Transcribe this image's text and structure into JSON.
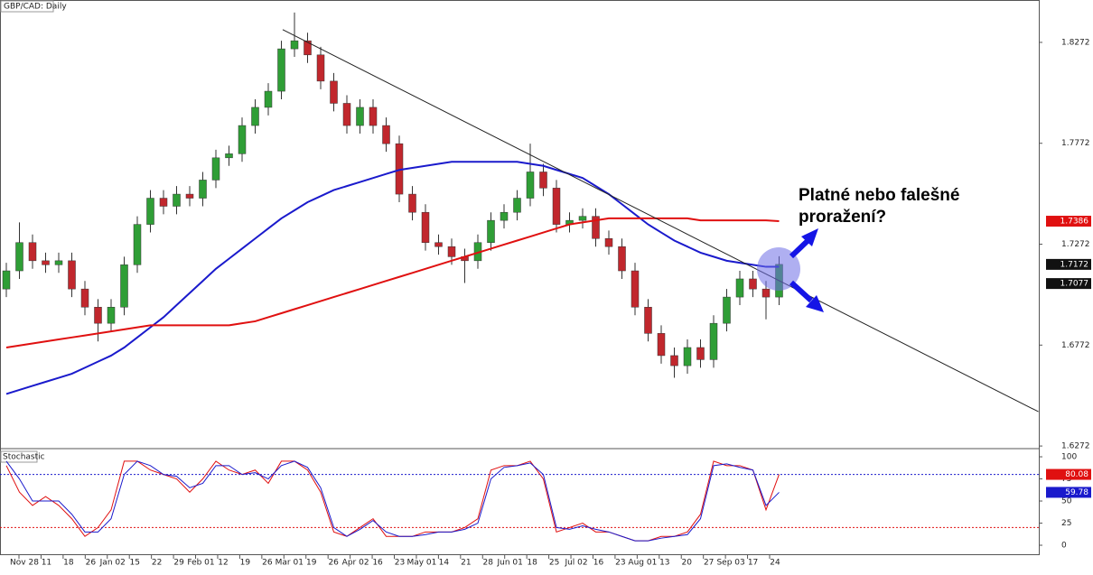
{
  "chart_data": [
    {
      "type": "candlestick",
      "title": "GBP/CAD: Daily",
      "x_labels": [
        "Nov 28",
        "11",
        "18",
        "26",
        "Jan 02",
        "15",
        "22",
        "29",
        "Feb 01",
        "12",
        "19",
        "26",
        "Mar 01",
        "19",
        "26",
        "Apr 02",
        "16",
        "23",
        "May 01",
        "14",
        "21",
        "28",
        "Jun 01",
        "18",
        "25",
        "Jul 02",
        "16",
        "23",
        "Aug 01",
        "13",
        "20",
        "27",
        "Sep 03",
        "17",
        "24"
      ],
      "open": [
        1.705,
        1.714,
        1.728,
        1.719,
        1.717,
        1.719,
        1.705,
        1.696,
        1.688,
        1.696,
        1.717,
        1.737,
        1.75,
        1.746,
        1.752,
        1.75,
        1.759,
        1.77,
        1.772,
        1.786,
        1.795,
        1.803,
        1.824,
        1.828,
        1.821,
        1.808,
        1.797,
        1.786,
        1.795,
        1.786,
        1.777,
        1.752,
        1.743,
        1.728,
        1.726,
        1.721,
        1.719,
        1.728,
        1.739,
        1.743,
        1.75,
        1.763,
        1.755,
        1.737,
        1.739,
        1.741,
        1.73,
        1.726,
        1.714,
        1.696,
        1.683,
        1.672,
        1.667,
        1.676,
        1.67,
        1.688,
        1.701,
        1.71,
        1.705,
        1.701
      ],
      "high": [
        1.718,
        1.738,
        1.732,
        1.723,
        1.723,
        1.723,
        1.709,
        1.7,
        1.7,
        1.721,
        1.741,
        1.754,
        1.754,
        1.756,
        1.756,
        1.763,
        1.774,
        1.776,
        1.79,
        1.799,
        1.807,
        1.828,
        1.842,
        1.832,
        1.825,
        1.812,
        1.801,
        1.799,
        1.799,
        1.79,
        1.781,
        1.756,
        1.747,
        1.732,
        1.73,
        1.725,
        1.732,
        1.743,
        1.747,
        1.754,
        1.777,
        1.767,
        1.759,
        1.743,
        1.745,
        1.745,
        1.734,
        1.73,
        1.718,
        1.7,
        1.687,
        1.676,
        1.68,
        1.68,
        1.692,
        1.705,
        1.714,
        1.714,
        1.709,
        1.7212
      ],
      "low": [
        1.701,
        1.71,
        1.715,
        1.713,
        1.713,
        1.701,
        1.692,
        1.679,
        1.684,
        1.692,
        1.713,
        1.733,
        1.742,
        1.742,
        1.746,
        1.746,
        1.755,
        1.766,
        1.768,
        1.782,
        1.791,
        1.799,
        1.82,
        1.817,
        1.804,
        1.793,
        1.782,
        1.782,
        1.782,
        1.773,
        1.748,
        1.739,
        1.724,
        1.722,
        1.717,
        1.708,
        1.715,
        1.724,
        1.735,
        1.739,
        1.746,
        1.751,
        1.733,
        1.733,
        1.735,
        1.726,
        1.722,
        1.71,
        1.692,
        1.679,
        1.668,
        1.661,
        1.663,
        1.666,
        1.666,
        1.684,
        1.697,
        1.701,
        1.69,
        1.697
      ],
      "close": [
        1.714,
        1.728,
        1.719,
        1.717,
        1.719,
        1.705,
        1.696,
        1.688,
        1.696,
        1.717,
        1.737,
        1.75,
        1.746,
        1.752,
        1.75,
        1.759,
        1.77,
        1.772,
        1.786,
        1.795,
        1.803,
        1.824,
        1.828,
        1.821,
        1.808,
        1.797,
        1.786,
        1.795,
        1.786,
        1.777,
        1.752,
        1.743,
        1.728,
        1.726,
        1.721,
        1.719,
        1.728,
        1.739,
        1.743,
        1.75,
        1.763,
        1.755,
        1.737,
        1.739,
        1.741,
        1.73,
        1.726,
        1.714,
        1.696,
        1.683,
        1.672,
        1.667,
        1.676,
        1.67,
        1.688,
        1.701,
        1.71,
        1.705,
        1.701,
        1.7172
      ],
      "up_color": "#2f9e36",
      "down_color": "#c1272d",
      "lines": [
        {
          "color": "#1a1acc",
          "values": [
            1.653,
            1.655,
            1.657,
            1.659,
            1.661,
            1.663,
            1.666,
            1.669,
            1.672,
            1.676,
            1.681,
            1.686,
            1.691,
            1.697,
            1.703,
            1.709,
            1.715,
            1.72,
            1.725,
            1.73,
            1.735,
            1.74,
            1.744,
            1.748,
            1.751,
            1.754,
            1.756,
            1.758,
            1.76,
            1.762,
            1.764,
            1.765,
            1.766,
            1.767,
            1.768,
            1.768,
            1.768,
            1.768,
            1.768,
            1.768,
            1.767,
            1.766,
            1.764,
            1.762,
            1.76,
            1.756,
            1.752,
            1.747,
            1.742,
            1.737,
            1.733,
            1.729,
            1.726,
            1.723,
            1.721,
            1.719,
            1.718,
            1.717,
            1.716,
            1.716
          ]
        },
        {
          "color": "#e01010",
          "values": [
            1.676,
            1.677,
            1.678,
            1.679,
            1.68,
            1.681,
            1.682,
            1.683,
            1.684,
            1.685,
            1.686,
            1.687,
            1.687,
            1.687,
            1.687,
            1.687,
            1.687,
            1.687,
            1.688,
            1.689,
            1.691,
            1.693,
            1.695,
            1.697,
            1.699,
            1.701,
            1.703,
            1.705,
            1.707,
            1.709,
            1.711,
            1.713,
            1.715,
            1.717,
            1.719,
            1.721,
            1.723,
            1.725,
            1.727,
            1.729,
            1.731,
            1.733,
            1.735,
            1.737,
            1.738,
            1.739,
            1.74,
            1.74,
            1.74,
            1.74,
            1.74,
            1.74,
            1.74,
            1.739,
            1.739,
            1.739,
            1.739,
            1.739,
            1.739,
            1.7386
          ]
        }
      ],
      "trendline": {
        "x": [
          21.1,
          78.8
        ],
        "y": [
          1.8335,
          1.6442
        ]
      },
      "marker_tag": 1.7077,
      "annotation": [
        "Platné nebo falešné",
        "proražení?"
      ],
      "ylim": [
        1.6259,
        1.8482
      ],
      "yticks": [
        1.6272,
        1.6772,
        1.7272,
        1.7772,
        1.8272
      ]
    },
    {
      "type": "stochastic",
      "title": "Stochastic",
      "series": [
        {
          "color": "#e01010",
          "values": [
            90,
            60,
            45,
            55,
            45,
            30,
            10,
            20,
            40,
            95,
            95,
            85,
            80,
            75,
            60,
            75,
            95,
            85,
            80,
            85,
            70,
            95,
            95,
            85,
            60,
            15,
            10,
            20,
            30,
            10,
            10,
            10,
            15,
            15,
            15,
            20,
            30,
            85,
            90,
            90,
            95,
            75,
            15,
            20,
            25,
            15,
            15,
            10,
            5,
            5,
            10,
            10,
            15,
            35,
            95,
            90,
            90,
            85,
            40,
            80.08
          ]
        },
        {
          "color": "#1a1acc",
          "values": [
            95,
            75,
            50,
            50,
            50,
            35,
            15,
            15,
            30,
            80,
            95,
            90,
            80,
            78,
            65,
            70,
            90,
            90,
            80,
            82,
            75,
            90,
            95,
            88,
            65,
            20,
            10,
            18,
            28,
            15,
            10,
            10,
            12,
            15,
            15,
            18,
            25,
            75,
            88,
            90,
            93,
            80,
            20,
            18,
            22,
            18,
            15,
            10,
            5,
            5,
            8,
            10,
            12,
            30,
            90,
            92,
            88,
            85,
            45,
            59.78
          ]
        }
      ],
      "levels": [
        {
          "value": 80,
          "color": "#1a1acc"
        },
        {
          "value": 20,
          "color": "#e01010"
        }
      ],
      "ylim": [
        -11.2,
        108.2
      ],
      "yticks": [
        0,
        25,
        50,
        75,
        100
      ]
    }
  ]
}
